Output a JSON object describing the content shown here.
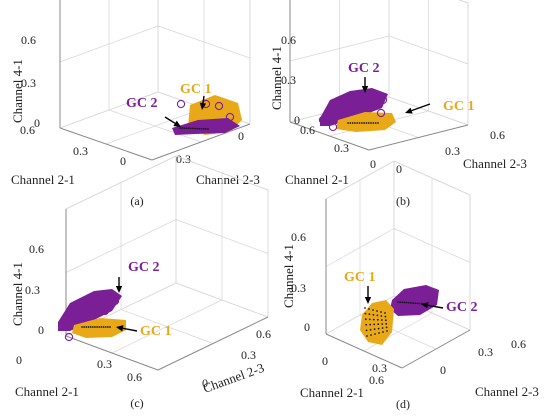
{
  "colors": {
    "gc1": "#E8A817",
    "gc2": "#7B1F97",
    "grid": "#d6d6d6",
    "box": "#8a8a8a",
    "text": "#222222",
    "arrow": "#000000"
  },
  "chart_data": [
    {
      "type": "scatter",
      "caption": "(a)",
      "xlabel": "Channel 2-1",
      "ylabel": "Channel 2-3",
      "zlabel": "Channel 4-1",
      "xlim": [
        0,
        0.6
      ],
      "ylim": [
        0,
        0.6
      ],
      "zlim": [
        0,
        0.6
      ],
      "x_ticks": [
        "0.6",
        "0.3",
        "0"
      ],
      "y_ticks": [
        "0.3",
        "0"
      ],
      "z_ticks": [
        "0.6",
        "0.3",
        "0"
      ],
      "grid": true,
      "annotations": [
        "GC 1",
        "GC 2"
      ],
      "series": [
        {
          "name": "GC 1",
          "color": "#E8A817"
        },
        {
          "name": "GC 2",
          "color": "#7B1F97"
        }
      ]
    },
    {
      "type": "scatter",
      "caption": "(b)",
      "xlabel": "Channel 2-1",
      "ylabel": "Channel 2-3",
      "zlabel": "Channel 4-1",
      "xlim": [
        0,
        0.6
      ],
      "ylim": [
        0,
        0.6
      ],
      "zlim": [
        0,
        0.6
      ],
      "x_ticks": [
        "0.6",
        "0.3",
        "0"
      ],
      "y_ticks": [
        "0",
        "0.3",
        "0.6"
      ],
      "z_ticks": [
        "0.6",
        "0.3",
        "0"
      ],
      "grid": true,
      "annotations": [
        "GC 2",
        "GC 1"
      ],
      "series": [
        {
          "name": "GC 1",
          "color": "#E8A817"
        },
        {
          "name": "GC 2",
          "color": "#7B1F97"
        }
      ]
    },
    {
      "type": "scatter",
      "caption": "(c)",
      "xlabel": "Channel 2-1",
      "ylabel": "Channel 2-3",
      "zlabel": "Channel 4-1",
      "xlim": [
        0,
        0.6
      ],
      "ylim": [
        0,
        0.6
      ],
      "zlim": [
        0,
        0.6
      ],
      "x_ticks": [
        "0",
        "0.3",
        "0.6"
      ],
      "y_ticks": [
        "0",
        "0.3",
        "0.6"
      ],
      "z_ticks": [
        "0.6",
        "0.3",
        "0"
      ],
      "grid": true,
      "annotations": [
        "GC 2",
        "GC 1"
      ],
      "series": [
        {
          "name": "GC 1",
          "color": "#E8A817"
        },
        {
          "name": "GC 2",
          "color": "#7B1F97"
        }
      ]
    },
    {
      "type": "scatter",
      "caption": "(d)",
      "xlabel": "Channel 2-1",
      "ylabel": "Channel 2-3",
      "zlabel": "Channel 4-1",
      "xlim": [
        0,
        0.6
      ],
      "ylim": [
        0,
        0.6
      ],
      "zlim": [
        0,
        0.6
      ],
      "x_ticks": [
        "0",
        "0.3",
        "0.6"
      ],
      "y_ticks": [
        "0",
        "0.3",
        "0.6"
      ],
      "z_ticks": [
        "0.6",
        "0.3",
        "0"
      ],
      "grid": true,
      "annotations": [
        "GC 1",
        "GC 2"
      ],
      "series": [
        {
          "name": "GC 1",
          "color": "#E8A817"
        },
        {
          "name": "GC 2",
          "color": "#7B1F97"
        }
      ]
    }
  ]
}
